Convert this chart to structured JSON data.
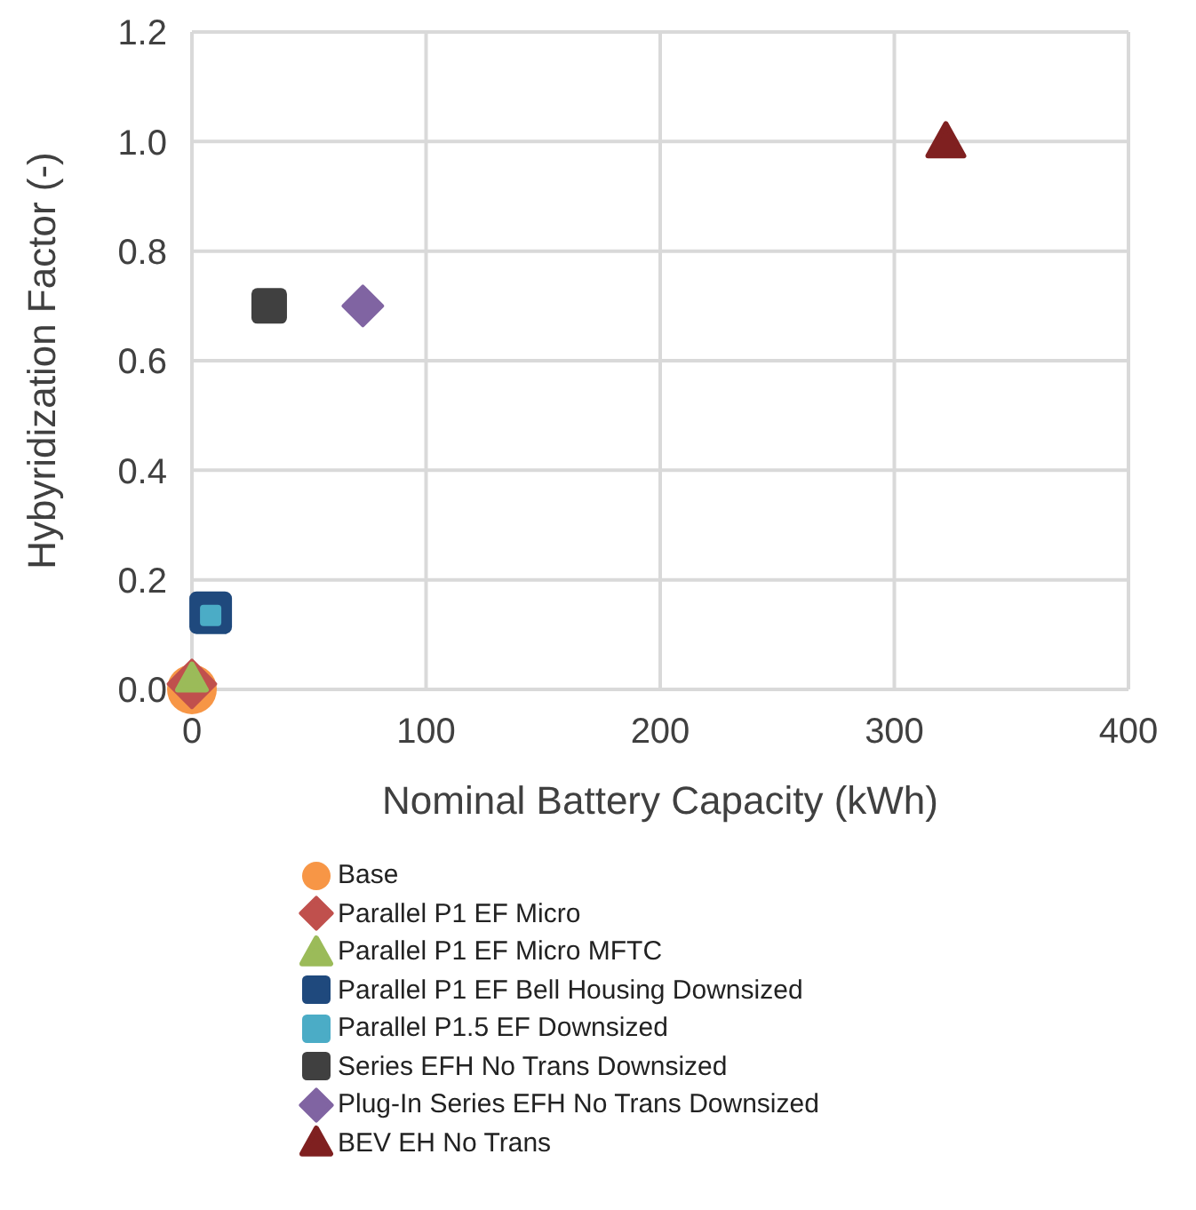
{
  "chart_data": {
    "type": "scatter",
    "xlabel": "Nominal Battery Capacity (kWh)",
    "ylabel": "Hybyridization Factor (-)",
    "xlim": [
      0,
      400
    ],
    "xticks": [
      0,
      100,
      200,
      300,
      400
    ],
    "ylim": [
      0,
      1.2
    ],
    "yticks": [
      {
        "value": 0,
        "label": "0.0"
      },
      {
        "value": 0.2,
        "label": "0.2"
      },
      {
        "value": 0.4,
        "label": "0.4"
      },
      {
        "value": 0.6,
        "label": "0.6"
      },
      {
        "value": 0.8,
        "label": "0.8"
      },
      {
        "value": 1,
        "label": "1.0"
      },
      {
        "value": 1.2,
        "label": "1.2"
      }
    ],
    "grid": true,
    "legend": "bottom",
    "series": [
      {
        "name": "Base",
        "color": "#f79646",
        "marker": "circle",
        "x": [
          0
        ],
        "values": [
          0
        ]
      },
      {
        "name": "Parallel P1 EF Micro",
        "color": "#c0504d",
        "marker": "diamond",
        "x": [
          0
        ],
        "values": [
          0.01
        ]
      },
      {
        "name": "Parallel P1 EF Micro MFTC",
        "color": "#9bbb59",
        "marker": "triangle",
        "x": [
          0
        ],
        "values": [
          0.02
        ]
      },
      {
        "name": "Parallel P1 EF Bell Housing Downsized",
        "color": "#1f497d",
        "marker": "square",
        "x": [
          8
        ],
        "values": [
          0.14
        ]
      },
      {
        "name": "Parallel P1.5 EF Downsized",
        "color": "#4bacc6",
        "marker": "square",
        "x": [
          8
        ],
        "values": [
          0.135
        ]
      },
      {
        "name": "Series EFH No Trans Downsized",
        "color": "#404040",
        "marker": "square",
        "x": [
          33
        ],
        "values": [
          0.7
        ]
      },
      {
        "name": "Plug-In Series EFH No Trans Downsized",
        "color": "#8064a2",
        "marker": "diamond",
        "x": [
          73
        ],
        "values": [
          0.7
        ]
      },
      {
        "name": "BEV EH No Trans",
        "color": "#7f2020",
        "marker": "triangle",
        "x": [
          322
        ],
        "values": [
          1.0
        ]
      }
    ]
  }
}
